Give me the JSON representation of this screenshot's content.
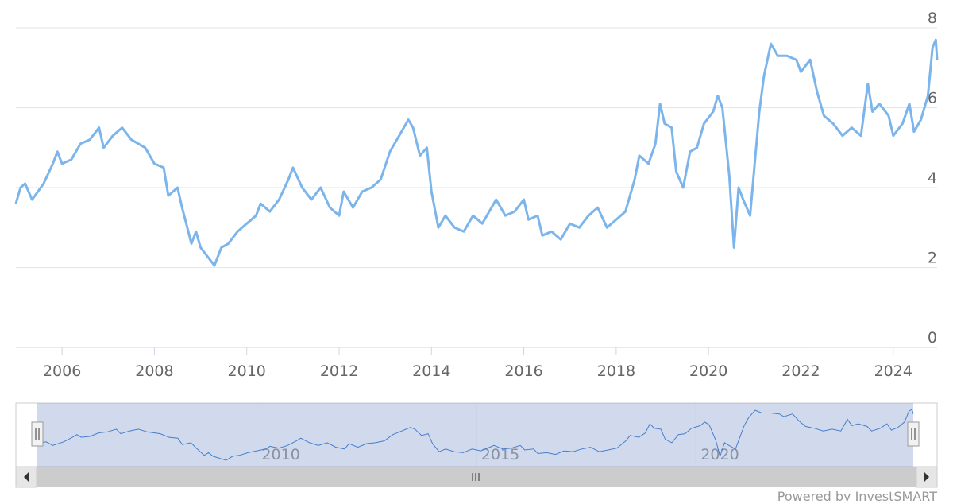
{
  "chart_data": {
    "type": "line",
    "color": "#7cb5ec",
    "x": [
      2005.0,
      2005.1,
      2005.2,
      2005.35,
      2005.6,
      2005.8,
      2005.9,
      2006.0,
      2006.2,
      2006.4,
      2006.6,
      2006.8,
      2006.9,
      2007.1,
      2007.3,
      2007.5,
      2007.8,
      2008.0,
      2008.2,
      2008.3,
      2008.5,
      2008.6,
      2008.8,
      2008.9,
      2009.0,
      2009.2,
      2009.3,
      2009.45,
      2009.6,
      2009.8,
      2010.0,
      2010.2,
      2010.3,
      2010.5,
      2010.7,
      2010.9,
      2011.0,
      2011.2,
      2011.4,
      2011.6,
      2011.8,
      2012.0,
      2012.1,
      2012.3,
      2012.5,
      2012.7,
      2012.9,
      2013.1,
      2013.3,
      2013.5,
      2013.6,
      2013.75,
      2013.9,
      2014.0,
      2014.15,
      2014.3,
      2014.5,
      2014.7,
      2014.9,
      2015.1,
      2015.3,
      2015.4,
      2015.6,
      2015.8,
      2016.0,
      2016.1,
      2016.3,
      2016.4,
      2016.6,
      2016.8,
      2017.0,
      2017.2,
      2017.4,
      2017.6,
      2017.8,
      2018.0,
      2018.2,
      2018.4,
      2018.5,
      2018.7,
      2018.85,
      2018.95,
      2019.05,
      2019.2,
      2019.3,
      2019.45,
      2019.6,
      2019.75,
      2019.9,
      2020.1,
      2020.2,
      2020.3,
      2020.45,
      2020.55,
      2020.65,
      2020.75,
      2020.9,
      2021.0,
      2021.1,
      2021.2,
      2021.35,
      2021.5,
      2021.7,
      2021.9,
      2022.0,
      2022.2,
      2022.35,
      2022.5,
      2022.7,
      2022.9,
      2023.1,
      2023.3,
      2023.45,
      2023.55,
      2023.7,
      2023.9,
      2024.0,
      2024.2,
      2024.35,
      2024.45,
      2024.6,
      2024.75,
      2024.85,
      2024.92,
      2024.95
    ],
    "values": [
      3.6,
      4.0,
      4.1,
      3.7,
      4.1,
      4.6,
      4.9,
      4.6,
      4.7,
      5.1,
      5.2,
      5.5,
      5.0,
      5.3,
      5.5,
      5.2,
      5.0,
      4.6,
      4.5,
      3.8,
      4.0,
      3.5,
      2.6,
      2.9,
      2.5,
      2.2,
      2.05,
      2.5,
      2.6,
      2.9,
      3.1,
      3.3,
      3.6,
      3.4,
      3.7,
      4.2,
      4.5,
      4.0,
      3.7,
      4.0,
      3.5,
      3.3,
      3.9,
      3.5,
      3.9,
      4.0,
      4.2,
      4.9,
      5.3,
      5.7,
      5.5,
      4.8,
      5.0,
      3.9,
      3.0,
      3.3,
      3.0,
      2.9,
      3.3,
      3.1,
      3.5,
      3.7,
      3.3,
      3.4,
      3.7,
      3.2,
      3.3,
      2.8,
      2.9,
      2.7,
      3.1,
      3.0,
      3.3,
      3.5,
      3.0,
      3.2,
      3.4,
      4.2,
      4.8,
      4.6,
      5.1,
      6.1,
      5.6,
      5.5,
      4.4,
      4.0,
      4.9,
      5.0,
      5.6,
      5.9,
      6.3,
      6.0,
      4.3,
      2.5,
      4.0,
      3.7,
      3.3,
      4.6,
      5.9,
      6.8,
      7.6,
      7.3,
      7.3,
      7.2,
      6.9,
      7.2,
      6.4,
      5.8,
      5.6,
      5.3,
      5.5,
      5.3,
      6.6,
      5.9,
      6.1,
      5.8,
      5.3,
      5.6,
      6.1,
      5.4,
      5.7,
      6.3,
      7.5,
      7.7,
      7.2
    ],
    "xlim": [
      2005.0,
      2024.95
    ],
    "ylim": [
      0,
      8
    ],
    "xticks": [
      2006,
      2008,
      2010,
      2012,
      2014,
      2016,
      2018,
      2020,
      2022,
      2024
    ],
    "yticks": [
      0,
      2,
      4,
      6,
      8
    ],
    "grid": true,
    "navigator": {
      "xticks": [
        2010,
        2015,
        2020
      ]
    },
    "credits": "Powered by InvestSMART"
  }
}
